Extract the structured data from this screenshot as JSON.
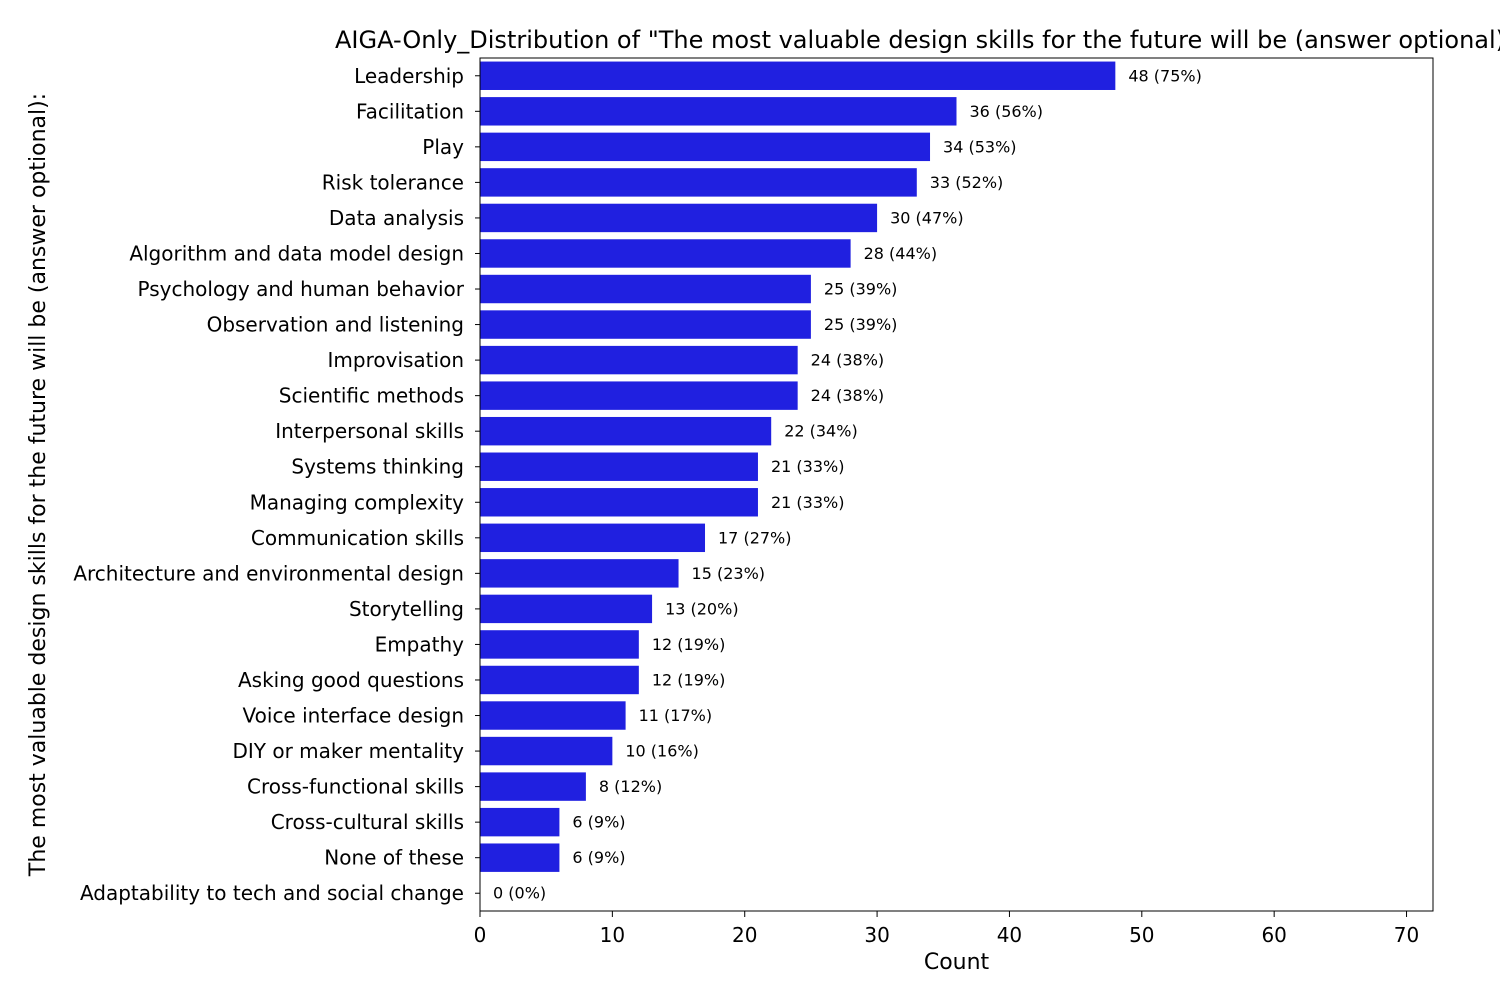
{
  "chart_data": {
    "type": "bar",
    "orientation": "horizontal",
    "title": "AIGA-Only_Distribution of \"The most valuable design skills for the future will be (answer optional):\"",
    "xlabel": "Count",
    "ylabel": "The most valuable design skills for the future will be (answer optional):",
    "xlim": [
      0,
      72
    ],
    "xticks": [
      0,
      10,
      20,
      30,
      40,
      50,
      60,
      70
    ],
    "grid": false,
    "bar_color": "#2020e0",
    "categories": [
      "Leadership",
      "Facilitation",
      "Play",
      "Risk tolerance",
      "Data analysis",
      "Algorithm and data model design",
      "Psychology and human behavior",
      "Observation and listening",
      "Improvisation",
      "Scientific methods",
      "Interpersonal skills",
      "Systems thinking",
      "Managing complexity",
      "Communication skills",
      "Architecture and environmental design",
      "Storytelling",
      "Empathy",
      "Asking good questions",
      "Voice interface design",
      "DIY or maker mentality",
      "Cross-functional skills",
      "Cross-cultural skills",
      "None of these",
      "Adaptability to tech and social change"
    ],
    "values": [
      48,
      36,
      34,
      33,
      30,
      28,
      25,
      25,
      24,
      24,
      22,
      21,
      21,
      17,
      15,
      13,
      12,
      12,
      11,
      10,
      8,
      6,
      6,
      0
    ],
    "data_labels": [
      "48 (75%)",
      "36 (56%)",
      "34 (53%)",
      "33 (52%)",
      "30 (47%)",
      "28 (44%)",
      "25 (39%)",
      "25 (39%)",
      "24 (38%)",
      "24 (38%)",
      "22 (34%)",
      "21 (33%)",
      "21 (33%)",
      "17 (27%)",
      "15 (23%)",
      "13 (20%)",
      "12 (19%)",
      "12 (19%)",
      "11 (17%)",
      "10 (16%)",
      "8 (12%)",
      "6 (9%)",
      "6 (9%)",
      "0 (0%)"
    ]
  }
}
